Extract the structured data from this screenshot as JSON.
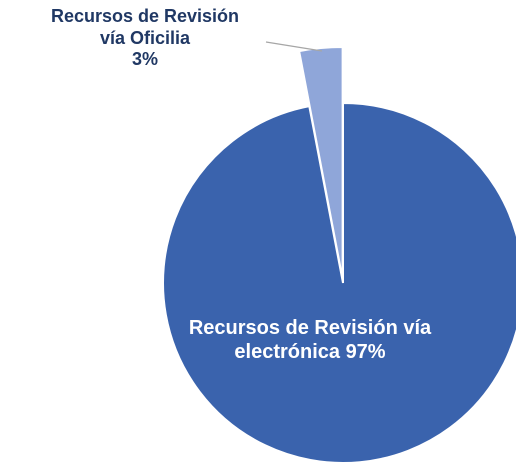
{
  "chart_data": {
    "type": "pie",
    "categories": [
      "Recursos de Revisión vía Oficilia",
      "Recursos de Revisión vía electrónica"
    ],
    "values": [
      3,
      97
    ],
    "value_labels": [
      "3%",
      "97%"
    ],
    "colors": [
      "#8fa6d9",
      "#3a63ad"
    ]
  }
}
